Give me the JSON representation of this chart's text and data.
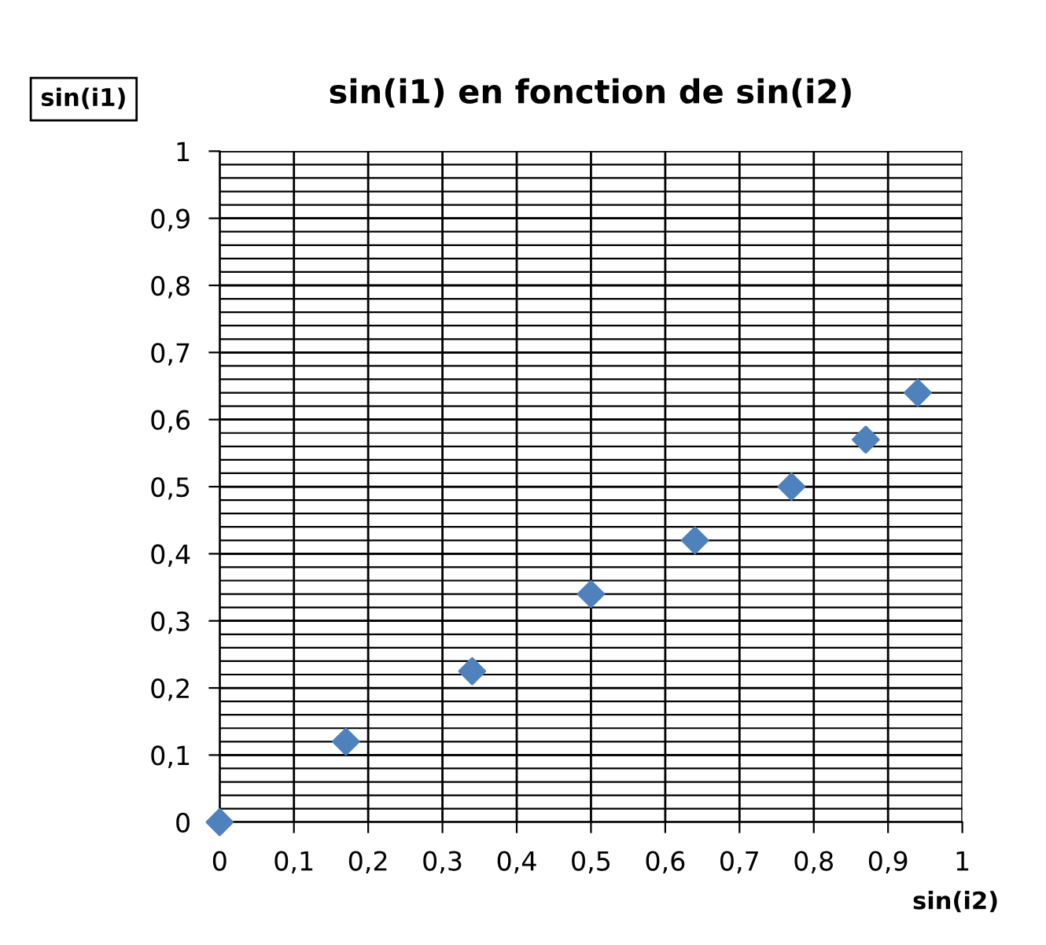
{
  "chart_data": {
    "type": "scatter",
    "title": "sin(i1) en fonction de sin(i2)",
    "xlabel": "sin(i2)",
    "ylabel": "sin(i1)",
    "x": [
      0,
      0.17,
      0.34,
      0.5,
      0.64,
      0.77,
      0.87,
      0.94
    ],
    "series": [
      {
        "color": "#4f81bd",
        "values": [
          0,
          0.12,
          0.225,
          0.34,
          0.42,
          0.5,
          0.57,
          0.64
        ]
      }
    ],
    "marker": "diamond",
    "grid": true,
    "legend": false,
    "xlim": [
      0,
      1
    ],
    "ylim": [
      0,
      1
    ],
    "xticks": [
      0,
      {
        "value": 0.1,
        "label": "0,1"
      },
      {
        "value": 0.2,
        "label": "0,2"
      },
      {
        "value": 0.3,
        "label": "0,3"
      },
      {
        "value": 0.4,
        "label": "0,4"
      },
      {
        "value": 0.5,
        "label": "0,5"
      },
      {
        "value": 0.6,
        "label": "0,6"
      },
      {
        "value": 0.7,
        "label": "0,7"
      },
      {
        "value": 0.8,
        "label": "0,8"
      },
      {
        "value": 0.9,
        "label": "0,9"
      },
      1
    ],
    "yticks": [
      0,
      {
        "value": 0.1,
        "label": "0,1"
      },
      {
        "value": 0.2,
        "label": "0,2"
      },
      {
        "value": 0.3,
        "label": "0,3"
      },
      {
        "value": 0.4,
        "label": "0,4"
      },
      {
        "value": 0.5,
        "label": "0,5"
      },
      {
        "value": 0.6,
        "label": "0,6"
      },
      {
        "value": 0.7,
        "label": "0,7"
      },
      {
        "value": 0.8,
        "label": "0,8"
      },
      {
        "value": 0.9,
        "label": "0,9"
      },
      1
    ]
  }
}
